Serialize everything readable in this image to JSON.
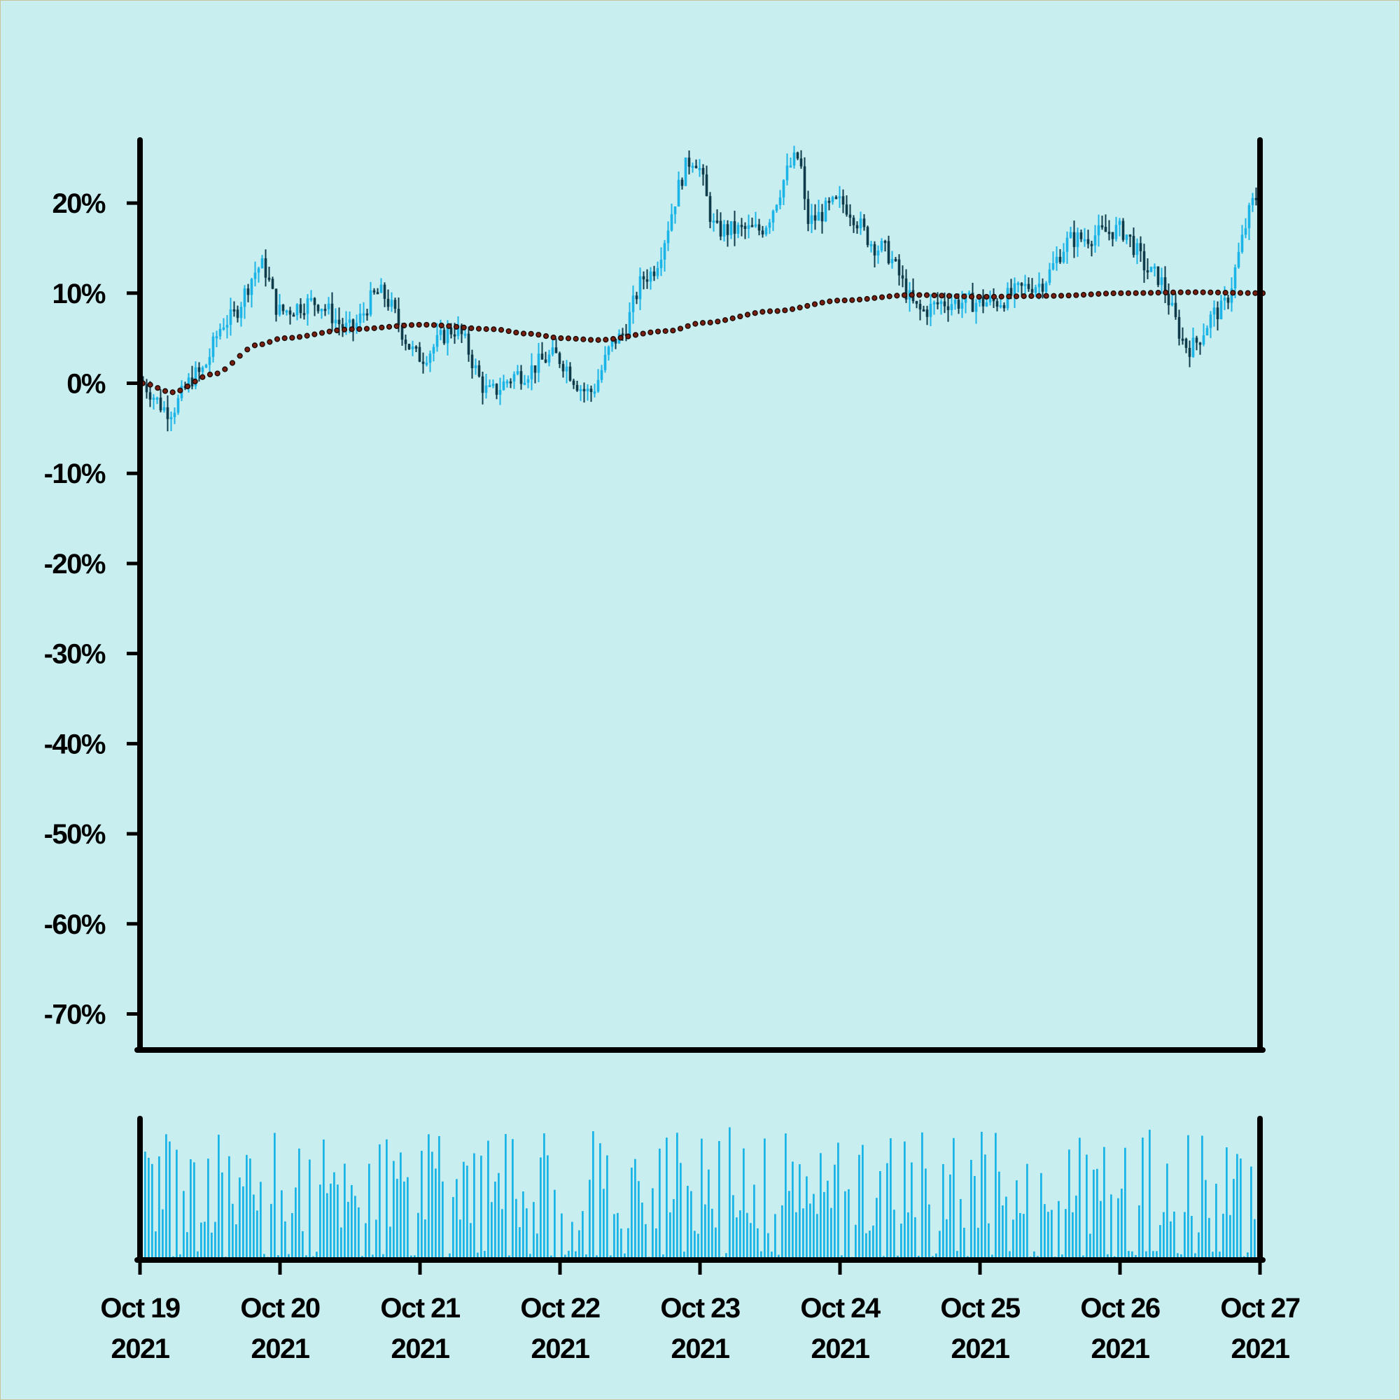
{
  "colors": {
    "background": "#c9eef0",
    "border": "#c8c49a",
    "axis": "#000000",
    "candle_up": "#1ab4e6",
    "candle_down": "#0d3b4a",
    "moving_average": "#7a1e10",
    "volume": "#1ab4e6"
  },
  "chart_data": [
    {
      "type": "candlestick",
      "title": "",
      "xlabel": "",
      "ylabel": "",
      "y_tick_labels": [
        "20%",
        "10%",
        "0%",
        "-10%",
        "-20%",
        "-30%",
        "-40%",
        "-50%",
        "-60%",
        "-70%"
      ],
      "y_ticks": [
        20,
        10,
        0,
        -10,
        -20,
        -30,
        -40,
        -50,
        -60,
        -70
      ],
      "ylim": [
        -74,
        27
      ],
      "xlim": [
        "2021-10-19",
        "2021-10-27"
      ],
      "grid": false,
      "candles_per_day": 40,
      "close_anchors": [
        {
          "t": "2021-10-19 00:00",
          "v": 0
        },
        {
          "t": "2021-10-19 05:00",
          "v": -3
        },
        {
          "t": "2021-10-19 10:00",
          "v": 1
        },
        {
          "t": "2021-10-19 15:00",
          "v": 7
        },
        {
          "t": "2021-10-19 21:00",
          "v": 13
        },
        {
          "t": "2021-10-20 00:00",
          "v": 8
        },
        {
          "t": "2021-10-20 06:00",
          "v": 9
        },
        {
          "t": "2021-10-20 12:00",
          "v": 6
        },
        {
          "t": "2021-10-20 17:00",
          "v": 10
        },
        {
          "t": "2021-10-21 00:00",
          "v": 3
        },
        {
          "t": "2021-10-21 06:00",
          "v": 6
        },
        {
          "t": "2021-10-21 12:00",
          "v": -1
        },
        {
          "t": "2021-10-21 17:00",
          "v": 1
        },
        {
          "t": "2021-10-21 23:00",
          "v": 3
        },
        {
          "t": "2021-10-22 05:00",
          "v": -1
        },
        {
          "t": "2021-10-22 10:00",
          "v": 5
        },
        {
          "t": "2021-10-22 15:00",
          "v": 12
        },
        {
          "t": "2021-10-22 23:00",
          "v": 25
        },
        {
          "t": "2021-10-23 03:00",
          "v": 17
        },
        {
          "t": "2021-10-23 10:00",
          "v": 17
        },
        {
          "t": "2021-10-23 17:00",
          "v": 25
        },
        {
          "t": "2021-10-23 18:30",
          "v": 18
        },
        {
          "t": "2021-10-24 00:00",
          "v": 20
        },
        {
          "t": "2021-10-24 07:00",
          "v": 15
        },
        {
          "t": "2021-10-24 14:00",
          "v": 8
        },
        {
          "t": "2021-10-24 18:00",
          "v": 9
        },
        {
          "t": "2021-10-25 02:00",
          "v": 9
        },
        {
          "t": "2021-10-25 10:00",
          "v": 11
        },
        {
          "t": "2021-10-25 16:00",
          "v": 16
        },
        {
          "t": "2021-10-26 00:00",
          "v": 17
        },
        {
          "t": "2021-10-26 06:00",
          "v": 12
        },
        {
          "t": "2021-10-26 12:00",
          "v": 4
        },
        {
          "t": "2021-10-26 17:00",
          "v": 8
        },
        {
          "t": "2021-10-27 00:00",
          "v": 21
        }
      ],
      "moving_average_anchors": [
        {
          "t": "2021-10-19 00:00",
          "v": 0
        },
        {
          "t": "2021-10-19 05:00",
          "v": -1
        },
        {
          "t": "2021-10-19 12:00",
          "v": 1
        },
        {
          "t": "2021-10-19 20:00",
          "v": 4.3
        },
        {
          "t": "2021-10-20 00:00",
          "v": 5
        },
        {
          "t": "2021-10-20 12:00",
          "v": 6
        },
        {
          "t": "2021-10-21 00:00",
          "v": 6.5
        },
        {
          "t": "2021-10-21 12:00",
          "v": 6
        },
        {
          "t": "2021-10-21 18:00",
          "v": 5.5
        },
        {
          "t": "2021-10-22 00:00",
          "v": 5
        },
        {
          "t": "2021-10-22 06:00",
          "v": 4.8
        },
        {
          "t": "2021-10-22 18:00",
          "v": 5.8
        },
        {
          "t": "2021-10-23 00:00",
          "v": 6.7
        },
        {
          "t": "2021-10-23 12:00",
          "v": 8
        },
        {
          "t": "2021-10-24 00:00",
          "v": 9.2
        },
        {
          "t": "2021-10-24 12:00",
          "v": 9.8
        },
        {
          "t": "2021-10-25 00:00",
          "v": 9.6
        },
        {
          "t": "2021-10-25 12:00",
          "v": 9.7
        },
        {
          "t": "2021-10-26 00:00",
          "v": 10
        },
        {
          "t": "2021-10-26 12:00",
          "v": 10.1
        },
        {
          "t": "2021-10-27 00:00",
          "v": 10
        }
      ]
    },
    {
      "type": "bar",
      "title": "",
      "xlabel": "",
      "ylabel": "",
      "x_tick_labels": [
        [
          "Oct 19",
          "2021"
        ],
        [
          "Oct 20",
          "2021"
        ],
        [
          "Oct 21",
          "2021"
        ],
        [
          "Oct 22",
          "2021"
        ],
        [
          "Oct 23",
          "2021"
        ],
        [
          "Oct 24",
          "2021"
        ],
        [
          "Oct 25",
          "2021"
        ],
        [
          "Oct 26",
          "2021"
        ],
        [
          "Oct 27",
          "2021"
        ]
      ],
      "xlim": [
        "2021-10-19",
        "2021-10-27"
      ],
      "volume_scale": [
        0,
        1
      ],
      "bars_per_day": 40
    }
  ]
}
